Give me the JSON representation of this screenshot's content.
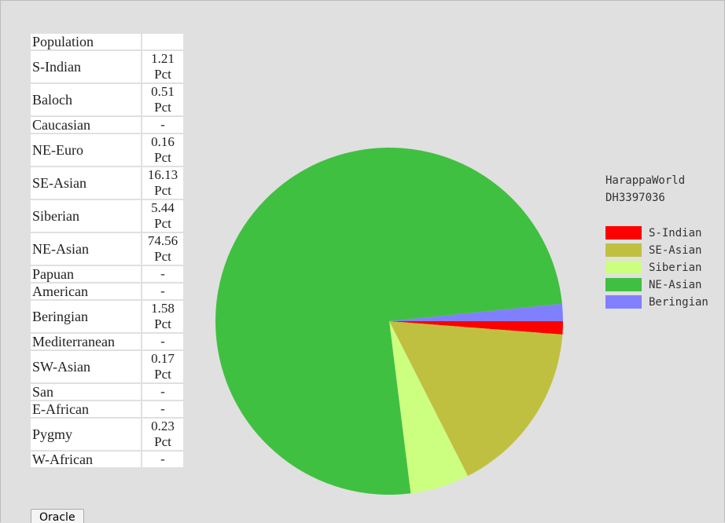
{
  "table": {
    "header": "Population",
    "rows": [
      [
        "S-Indian",
        "1.21 Pct"
      ],
      [
        "Baloch",
        "0.51 Pct"
      ],
      [
        "Caucasian",
        "-"
      ],
      [
        "NE-Euro",
        "0.16 Pct"
      ],
      [
        "SE-Asian",
        "16.13 Pct"
      ],
      [
        "Siberian",
        "5.44 Pct"
      ],
      [
        "NE-Asian",
        "74.56 Pct"
      ],
      [
        "Papuan",
        "-"
      ],
      [
        "American",
        "-"
      ],
      [
        "Beringian",
        "1.58 Pct"
      ],
      [
        "Mediterranean",
        "-"
      ],
      [
        "SW-Asian",
        "0.17 Pct"
      ],
      [
        "San",
        "-"
      ],
      [
        "E-African",
        "-"
      ],
      [
        "Pygmy",
        "0.23 Pct"
      ],
      [
        "W-African",
        "-"
      ]
    ]
  },
  "button": "Oracle",
  "chart_data": {
    "type": "pie",
    "title": "HarappaWorld",
    "subtitle": "DH3397036",
    "categories": [
      "S-Indian",
      "SE-Asian",
      "Siberian",
      "NE-Asian",
      "Beringian"
    ],
    "values": [
      1.21,
      16.13,
      5.44,
      74.56,
      1.58
    ],
    "colors": [
      "#ff0000",
      "#c0c040",
      "#ccff80",
      "#40c040",
      "#8080ff"
    ]
  }
}
